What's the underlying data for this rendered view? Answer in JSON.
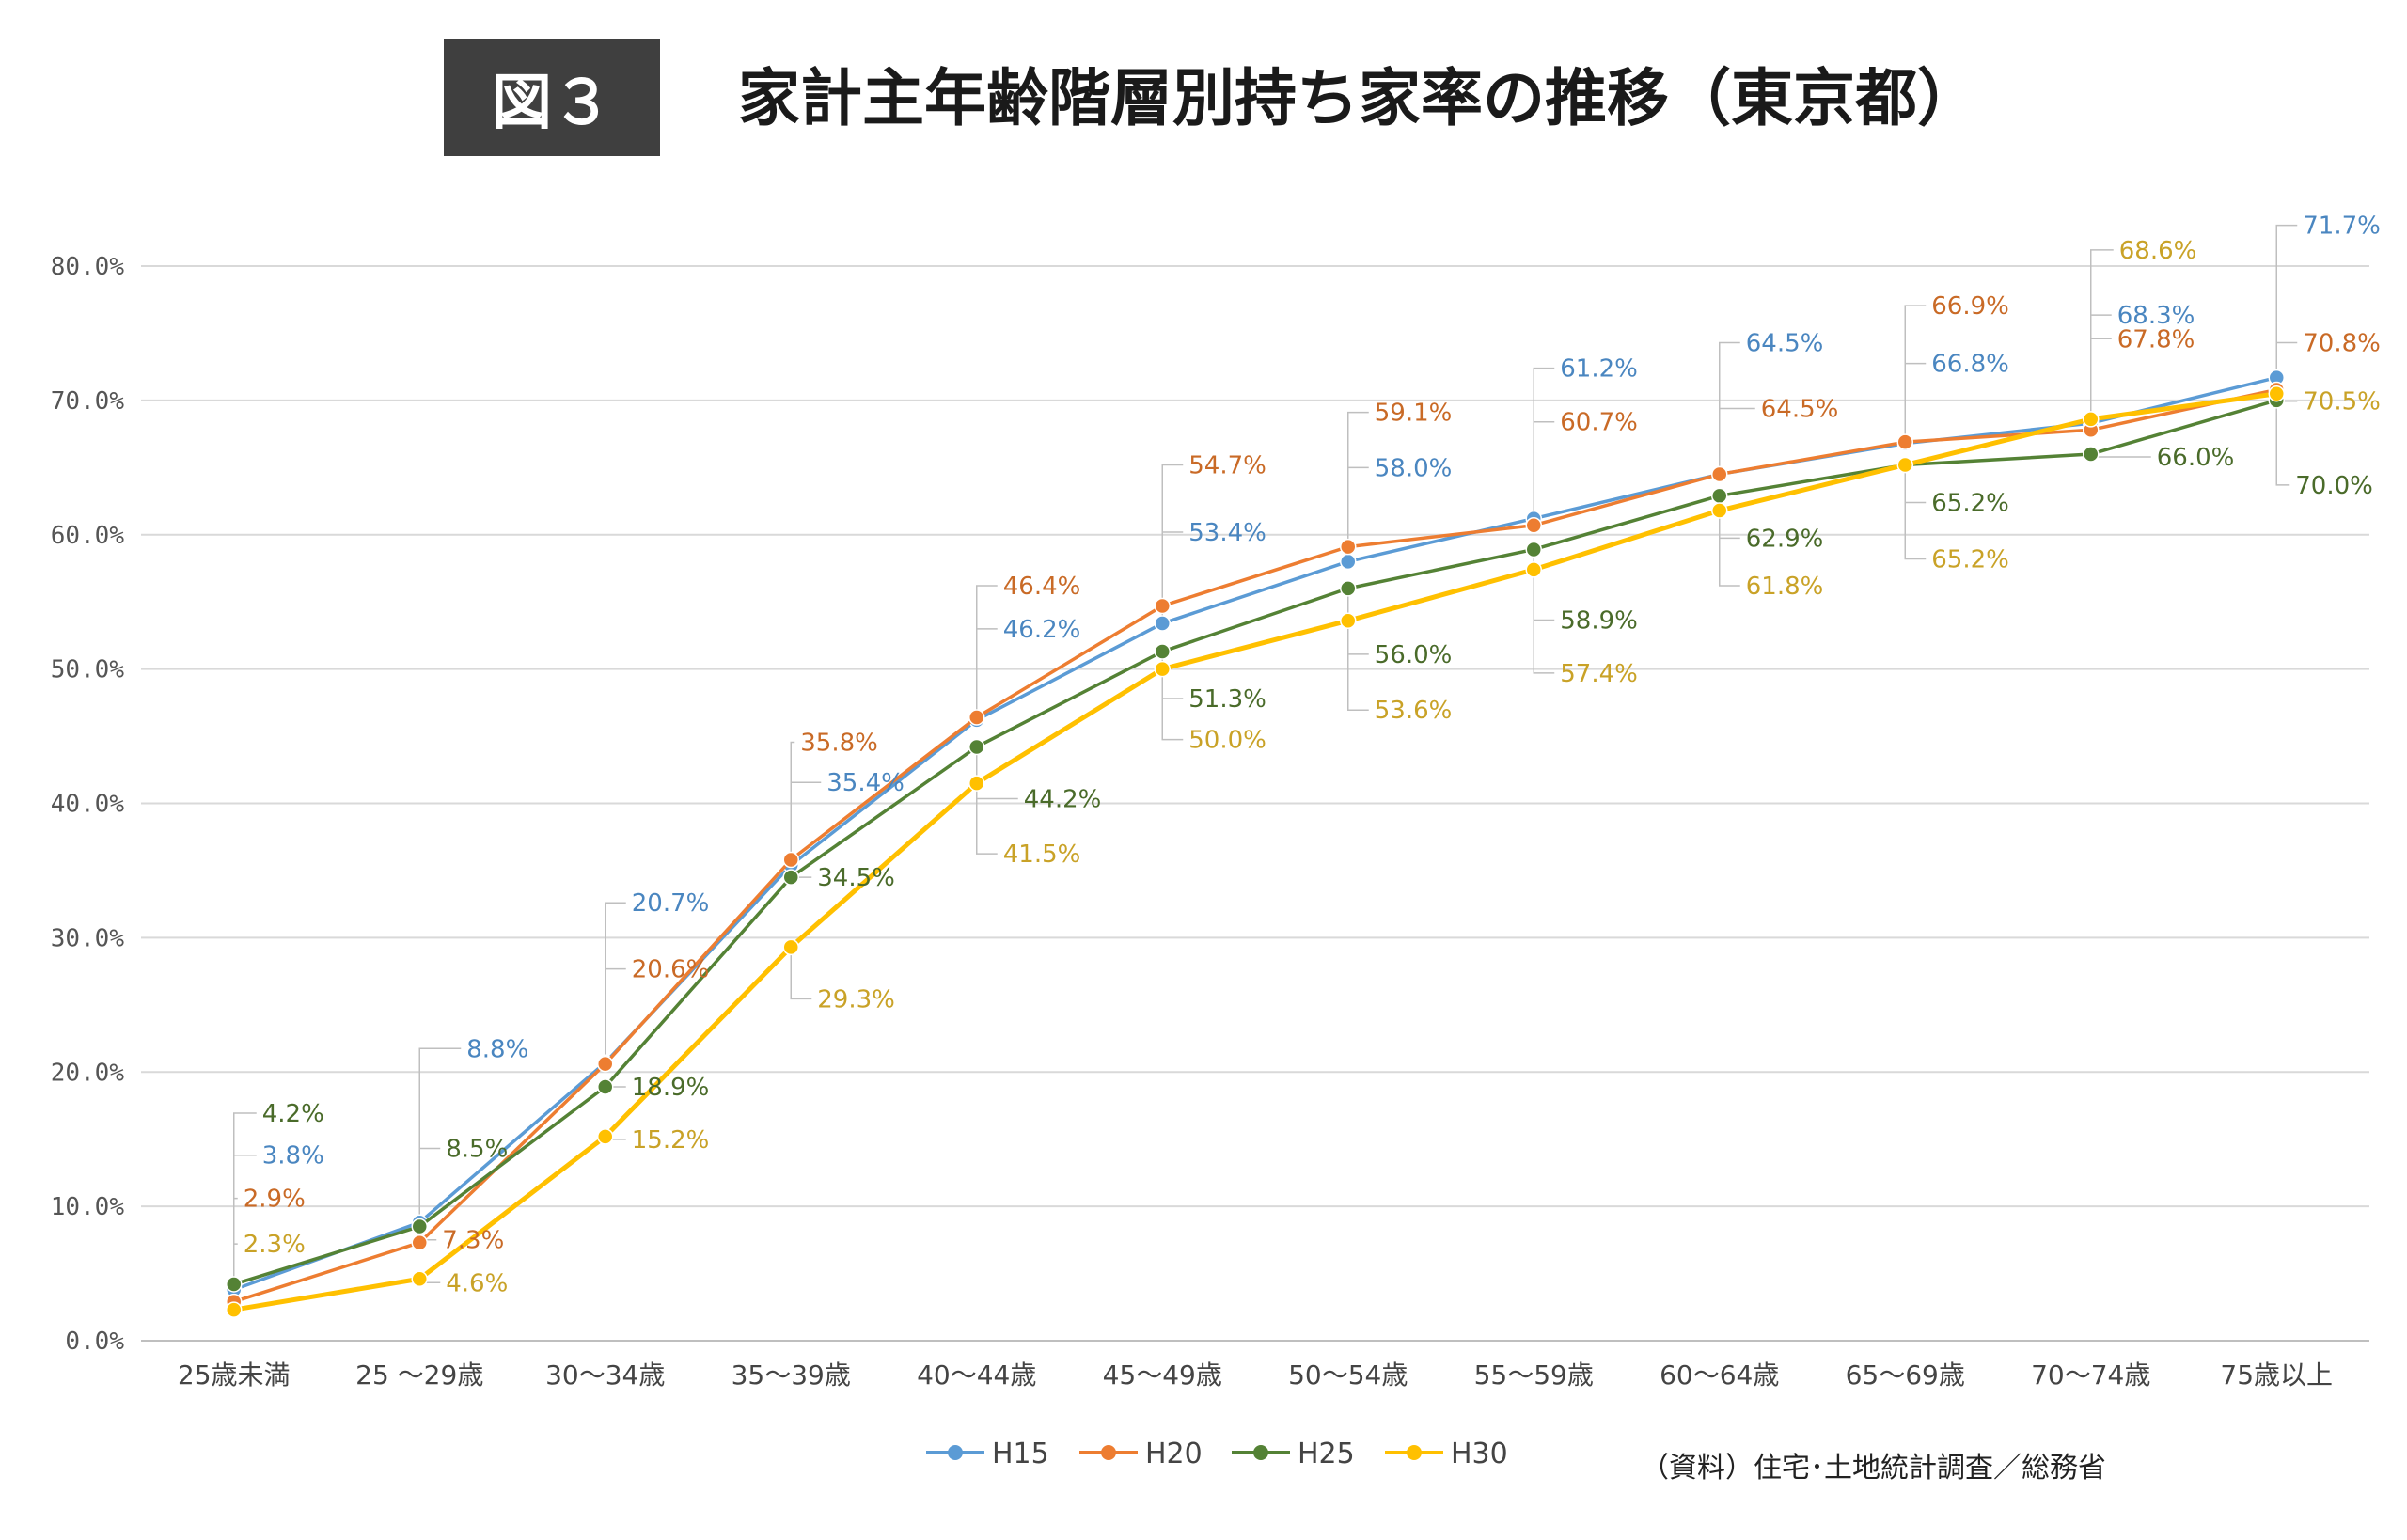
{
  "header": {
    "figure_label": "図３",
    "title": "家計主年齢階層別持ち家率の推移（東京都）"
  },
  "source": "（資料）住宅･土地統計調査／総務省",
  "chart_data": {
    "type": "line",
    "title": "家計主年齢階層別持ち家率の推移（東京都）",
    "xlabel": "",
    "ylabel": "",
    "ylim": [
      0,
      80
    ],
    "yticks": [
      "0.0%",
      "10.0%",
      "20.0%",
      "30.0%",
      "40.0%",
      "50.0%",
      "60.0%",
      "70.0%",
      "80.0%"
    ],
    "grid": true,
    "legend_position": "bottom",
    "categories": [
      "25歳未満",
      "25 ～29歳",
      "30～34歳",
      "35～39歳",
      "40～44歳",
      "45～49歳",
      "50～54歳",
      "55～59歳",
      "60～64歳",
      "65～69歳",
      "70～74歳",
      "75歳以上"
    ],
    "series": [
      {
        "name": "H15",
        "color": "#5b9bd5",
        "values": [
          3.8,
          8.8,
          20.7,
          35.4,
          46.2,
          53.4,
          58.0,
          61.2,
          64.5,
          66.8,
          68.3,
          71.7
        ]
      },
      {
        "name": "H20",
        "color": "#ed7d31",
        "values": [
          2.9,
          7.3,
          20.6,
          35.8,
          46.4,
          54.7,
          59.1,
          60.7,
          64.5,
          66.9,
          67.8,
          70.8
        ]
      },
      {
        "name": "H25",
        "color": "#548235",
        "values": [
          4.2,
          8.5,
          18.9,
          34.5,
          44.2,
          51.3,
          56.0,
          58.9,
          62.9,
          65.2,
          66.0,
          70.0
        ]
      },
      {
        "name": "H30",
        "color": "#ffc000",
        "values": [
          2.3,
          4.6,
          15.2,
          29.3,
          41.5,
          50.0,
          53.6,
          57.4,
          61.8,
          65.2,
          68.6,
          70.5
        ]
      }
    ],
    "data_labels": {
      "H15": [
        "3.8%",
        "8.8%",
        "20.7%",
        "35.4%",
        "46.2%",
        "53.4%",
        "58.0%",
        "61.2%",
        "64.5%",
        "66.8%",
        "68.3%",
        "71.7%"
      ],
      "H20": [
        "2.9%",
        "7.3%",
        "20.6%",
        "35.8%",
        "46.4%",
        "54.7%",
        "59.1%",
        "60.7%",
        "64.5%",
        "66.9%",
        "67.8%",
        "70.8%"
      ],
      "H25": [
        "4.2%",
        "8.5%",
        "18.9%",
        "34.5%",
        "44.2%",
        "51.3%",
        "56.0%",
        "58.9%",
        "62.9%",
        "65.2%",
        "66.0%",
        "70.0%"
      ],
      "H30": [
        "2.3%",
        "4.6%",
        "15.2%",
        "29.3%",
        "41.5%",
        "50.0%",
        "53.6%",
        "57.4%",
        "61.8%",
        "65.2%",
        "68.6%",
        "70.5%"
      ]
    },
    "label_colors": {
      "H15": "#4a86c0",
      "H20": "#c96a26",
      "H25": "#4a6b2a",
      "H30": "#c9a227"
    }
  }
}
